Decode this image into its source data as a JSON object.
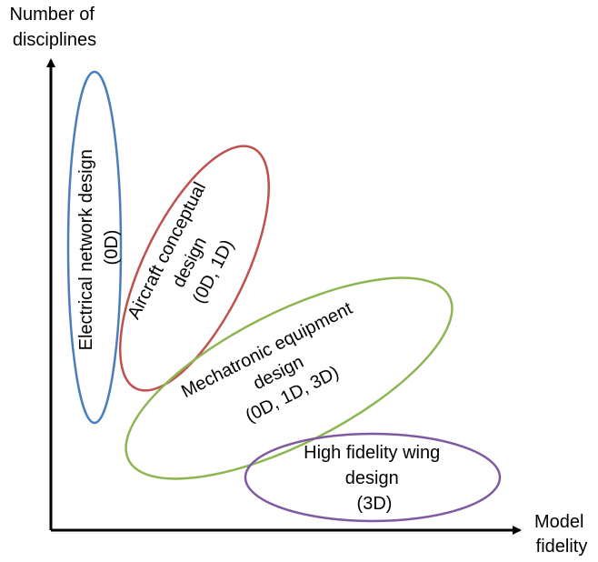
{
  "axes": {
    "y_label_lines": [
      "Number of",
      "disciplines"
    ],
    "x_label_lines": [
      "Model",
      "fidelity"
    ]
  },
  "regions": [
    {
      "id": "electrical",
      "lines": [
        "Electrical network design",
        "(0D)"
      ],
      "color": "#4a7ebb"
    },
    {
      "id": "aircraft",
      "lines": [
        "Aircraft conceptual",
        "design",
        "(0D, 1D)"
      ],
      "color": "#c0504d"
    },
    {
      "id": "mechatronic",
      "lines": [
        "Mechatronic equipment",
        "design",
        "(0D, 1D, 3D)"
      ],
      "color": "#8db653"
    },
    {
      "id": "wing",
      "lines": [
        "High fidelity wing",
        "design",
        "(3D)"
      ],
      "color": "#7e5ba1"
    }
  ]
}
